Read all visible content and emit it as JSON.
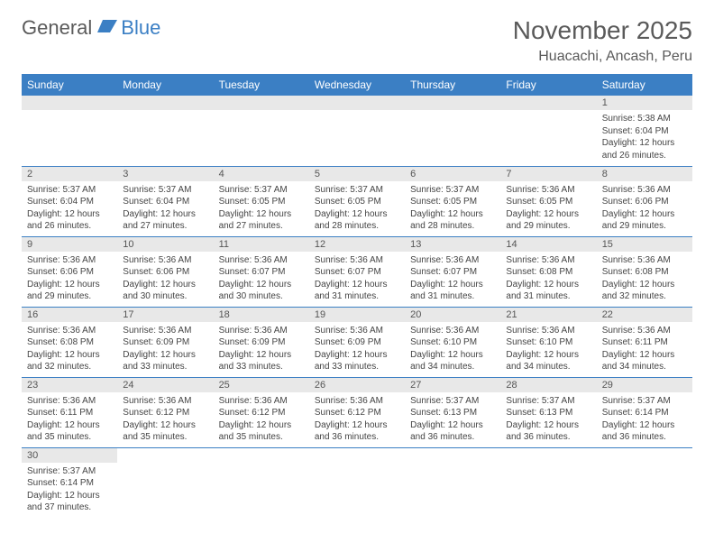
{
  "logo": {
    "part1": "General",
    "part2": "Blue"
  },
  "title": "November 2025",
  "subtitle": "Huacachi, Ancash, Peru",
  "headerDays": [
    "Sunday",
    "Monday",
    "Tuesday",
    "Wednesday",
    "Thursday",
    "Friday",
    "Saturday"
  ],
  "colors": {
    "headerBg": "#3b7fc4",
    "stripeBg": "#e8e8e8",
    "bodyText": "#444444",
    "titleText": "#5a5a5a"
  },
  "weeks": [
    [
      {
        "blank": true
      },
      {
        "blank": true
      },
      {
        "blank": true
      },
      {
        "blank": true
      },
      {
        "blank": true
      },
      {
        "blank": true
      },
      {
        "day": "1",
        "sunrise": "Sunrise: 5:38 AM",
        "sunset": "Sunset: 6:04 PM",
        "daylight1": "Daylight: 12 hours",
        "daylight2": "and 26 minutes."
      }
    ],
    [
      {
        "day": "2",
        "sunrise": "Sunrise: 5:37 AM",
        "sunset": "Sunset: 6:04 PM",
        "daylight1": "Daylight: 12 hours",
        "daylight2": "and 26 minutes."
      },
      {
        "day": "3",
        "sunrise": "Sunrise: 5:37 AM",
        "sunset": "Sunset: 6:04 PM",
        "daylight1": "Daylight: 12 hours",
        "daylight2": "and 27 minutes."
      },
      {
        "day": "4",
        "sunrise": "Sunrise: 5:37 AM",
        "sunset": "Sunset: 6:05 PM",
        "daylight1": "Daylight: 12 hours",
        "daylight2": "and 27 minutes."
      },
      {
        "day": "5",
        "sunrise": "Sunrise: 5:37 AM",
        "sunset": "Sunset: 6:05 PM",
        "daylight1": "Daylight: 12 hours",
        "daylight2": "and 28 minutes."
      },
      {
        "day": "6",
        "sunrise": "Sunrise: 5:37 AM",
        "sunset": "Sunset: 6:05 PM",
        "daylight1": "Daylight: 12 hours",
        "daylight2": "and 28 minutes."
      },
      {
        "day": "7",
        "sunrise": "Sunrise: 5:36 AM",
        "sunset": "Sunset: 6:05 PM",
        "daylight1": "Daylight: 12 hours",
        "daylight2": "and 29 minutes."
      },
      {
        "day": "8",
        "sunrise": "Sunrise: 5:36 AM",
        "sunset": "Sunset: 6:06 PM",
        "daylight1": "Daylight: 12 hours",
        "daylight2": "and 29 minutes."
      }
    ],
    [
      {
        "day": "9",
        "sunrise": "Sunrise: 5:36 AM",
        "sunset": "Sunset: 6:06 PM",
        "daylight1": "Daylight: 12 hours",
        "daylight2": "and 29 minutes."
      },
      {
        "day": "10",
        "sunrise": "Sunrise: 5:36 AM",
        "sunset": "Sunset: 6:06 PM",
        "daylight1": "Daylight: 12 hours",
        "daylight2": "and 30 minutes."
      },
      {
        "day": "11",
        "sunrise": "Sunrise: 5:36 AM",
        "sunset": "Sunset: 6:07 PM",
        "daylight1": "Daylight: 12 hours",
        "daylight2": "and 30 minutes."
      },
      {
        "day": "12",
        "sunrise": "Sunrise: 5:36 AM",
        "sunset": "Sunset: 6:07 PM",
        "daylight1": "Daylight: 12 hours",
        "daylight2": "and 31 minutes."
      },
      {
        "day": "13",
        "sunrise": "Sunrise: 5:36 AM",
        "sunset": "Sunset: 6:07 PM",
        "daylight1": "Daylight: 12 hours",
        "daylight2": "and 31 minutes."
      },
      {
        "day": "14",
        "sunrise": "Sunrise: 5:36 AM",
        "sunset": "Sunset: 6:08 PM",
        "daylight1": "Daylight: 12 hours",
        "daylight2": "and 31 minutes."
      },
      {
        "day": "15",
        "sunrise": "Sunrise: 5:36 AM",
        "sunset": "Sunset: 6:08 PM",
        "daylight1": "Daylight: 12 hours",
        "daylight2": "and 32 minutes."
      }
    ],
    [
      {
        "day": "16",
        "sunrise": "Sunrise: 5:36 AM",
        "sunset": "Sunset: 6:08 PM",
        "daylight1": "Daylight: 12 hours",
        "daylight2": "and 32 minutes."
      },
      {
        "day": "17",
        "sunrise": "Sunrise: 5:36 AM",
        "sunset": "Sunset: 6:09 PM",
        "daylight1": "Daylight: 12 hours",
        "daylight2": "and 33 minutes."
      },
      {
        "day": "18",
        "sunrise": "Sunrise: 5:36 AM",
        "sunset": "Sunset: 6:09 PM",
        "daylight1": "Daylight: 12 hours",
        "daylight2": "and 33 minutes."
      },
      {
        "day": "19",
        "sunrise": "Sunrise: 5:36 AM",
        "sunset": "Sunset: 6:09 PM",
        "daylight1": "Daylight: 12 hours",
        "daylight2": "and 33 minutes."
      },
      {
        "day": "20",
        "sunrise": "Sunrise: 5:36 AM",
        "sunset": "Sunset: 6:10 PM",
        "daylight1": "Daylight: 12 hours",
        "daylight2": "and 34 minutes."
      },
      {
        "day": "21",
        "sunrise": "Sunrise: 5:36 AM",
        "sunset": "Sunset: 6:10 PM",
        "daylight1": "Daylight: 12 hours",
        "daylight2": "and 34 minutes."
      },
      {
        "day": "22",
        "sunrise": "Sunrise: 5:36 AM",
        "sunset": "Sunset: 6:11 PM",
        "daylight1": "Daylight: 12 hours",
        "daylight2": "and 34 minutes."
      }
    ],
    [
      {
        "day": "23",
        "sunrise": "Sunrise: 5:36 AM",
        "sunset": "Sunset: 6:11 PM",
        "daylight1": "Daylight: 12 hours",
        "daylight2": "and 35 minutes."
      },
      {
        "day": "24",
        "sunrise": "Sunrise: 5:36 AM",
        "sunset": "Sunset: 6:12 PM",
        "daylight1": "Daylight: 12 hours",
        "daylight2": "and 35 minutes."
      },
      {
        "day": "25",
        "sunrise": "Sunrise: 5:36 AM",
        "sunset": "Sunset: 6:12 PM",
        "daylight1": "Daylight: 12 hours",
        "daylight2": "and 35 minutes."
      },
      {
        "day": "26",
        "sunrise": "Sunrise: 5:36 AM",
        "sunset": "Sunset: 6:12 PM",
        "daylight1": "Daylight: 12 hours",
        "daylight2": "and 36 minutes."
      },
      {
        "day": "27",
        "sunrise": "Sunrise: 5:37 AM",
        "sunset": "Sunset: 6:13 PM",
        "daylight1": "Daylight: 12 hours",
        "daylight2": "and 36 minutes."
      },
      {
        "day": "28",
        "sunrise": "Sunrise: 5:37 AM",
        "sunset": "Sunset: 6:13 PM",
        "daylight1": "Daylight: 12 hours",
        "daylight2": "and 36 minutes."
      },
      {
        "day": "29",
        "sunrise": "Sunrise: 5:37 AM",
        "sunset": "Sunset: 6:14 PM",
        "daylight1": "Daylight: 12 hours",
        "daylight2": "and 36 minutes."
      }
    ],
    [
      {
        "day": "30",
        "sunrise": "Sunrise: 5:37 AM",
        "sunset": "Sunset: 6:14 PM",
        "daylight1": "Daylight: 12 hours",
        "daylight2": "and 37 minutes."
      },
      {
        "trailing": true
      },
      {
        "trailing": true
      },
      {
        "trailing": true
      },
      {
        "trailing": true
      },
      {
        "trailing": true
      },
      {
        "trailing": true
      }
    ]
  ]
}
